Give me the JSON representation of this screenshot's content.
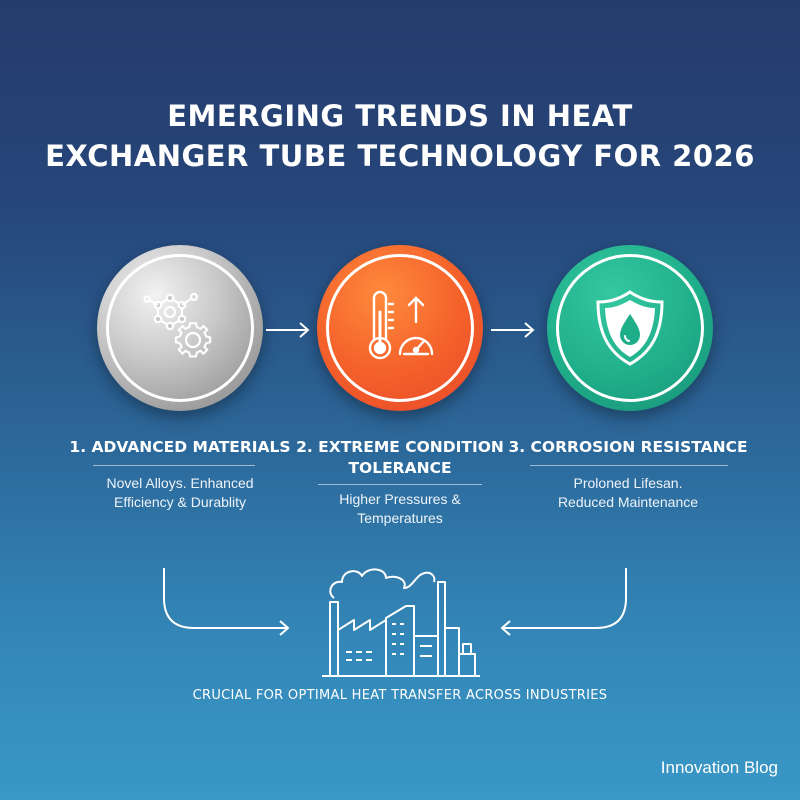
{
  "title": {
    "line1": "EMERGING TRENDS IN HEAT",
    "line2": "EXCHANGER TUBE TECHNOLOGY FOR 2026"
  },
  "steps": [
    {
      "title_lines": [
        "1. ADVANCED MATERIALS"
      ],
      "desc_lines": [
        "Novel Alloys. Enhanced",
        "Efficiency & Durablity"
      ],
      "icon": "molecule-gear-icon",
      "color": "#b5b5b5"
    },
    {
      "title_lines": [
        "2. EXTREME CONDITION",
        "TOLERANCE"
      ],
      "desc_lines": [
        "Higher Pressures &",
        "Temperatures"
      ],
      "icon": "thermometer-gauge-icon",
      "color": "#f4622a"
    },
    {
      "title_lines": [
        "3. CORROSION RESISTANCE"
      ],
      "desc_lines": [
        "Proloned Lifesan.",
        "Reduced Maintenance"
      ],
      "icon": "shield-droplet-icon",
      "color": "#1fae8a"
    }
  ],
  "footer": {
    "caption": "CRUCIAL FOR OPTIMAL HEAT TRANSFER ACROSS INDUSTRIES",
    "icon": "factory-icon"
  },
  "brand": "Innovation Blog"
}
